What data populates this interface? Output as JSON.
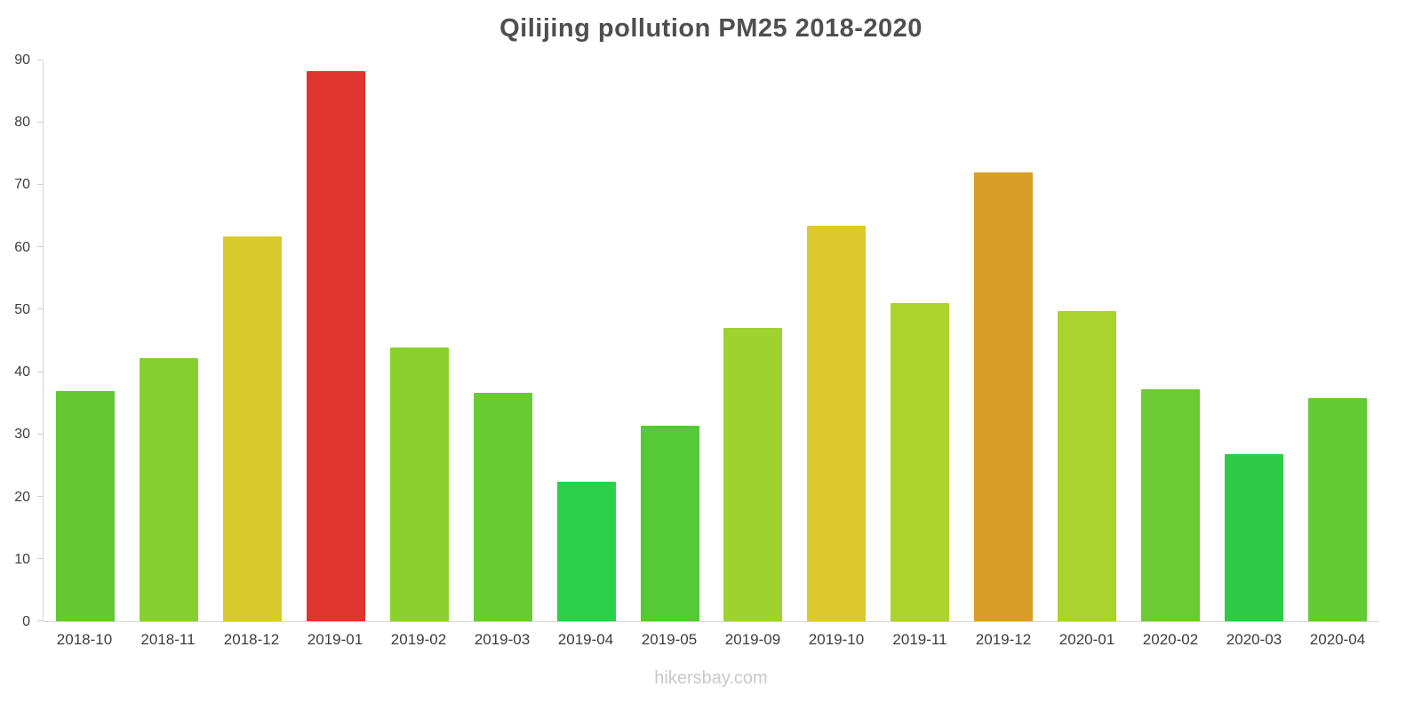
{
  "page": {
    "footer": "hikersbay.com"
  },
  "chart_data": {
    "type": "bar",
    "title": "Qilijing pollution PM25 2018-2020",
    "categories": [
      "2018-10",
      "2018-11",
      "2018-12",
      "2019-01",
      "2019-02",
      "2019-03",
      "2019-04",
      "2019-05",
      "2019-09",
      "2019-10",
      "2019-11",
      "2019-12",
      "2020-01",
      "2020-02",
      "2020-03",
      "2020-04"
    ],
    "values": [
      37,
      42.2,
      61.8,
      88.3,
      44,
      36.6,
      22.4,
      31.4,
      47,
      63.5,
      51,
      72,
      49.8,
      37.3,
      26.8,
      35.8
    ],
    "colors": [
      "#64c831",
      "#85d02f",
      "#d8ca2c",
      "#e0352f",
      "#8bd02f",
      "#68cb32",
      "#2bd04a",
      "#55c936",
      "#9ed22f",
      "#ddc92d",
      "#add32f",
      "#d89e27",
      "#aad32f",
      "#6bcb33",
      "#2ecc45",
      "#62ca33"
    ],
    "xlabel": "",
    "ylabel": "",
    "ylim": [
      0,
      90
    ],
    "y_ticks": [
      0,
      10,
      20,
      30,
      40,
      50,
      60,
      70,
      80,
      90
    ],
    "grid": false,
    "legend": false
  }
}
